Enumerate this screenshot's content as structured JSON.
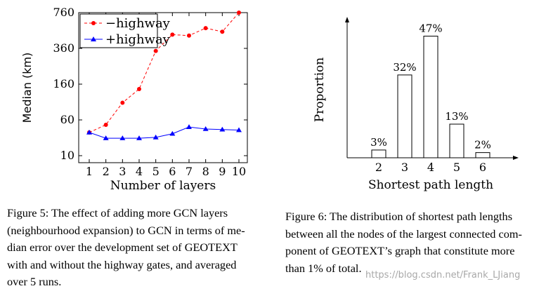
{
  "chart_data": [
    {
      "type": "line",
      "xlabel": "Number of layers",
      "ylabel": "Median (km)",
      "x": [
        1,
        2,
        3,
        4,
        5,
        6,
        7,
        8,
        9,
        10
      ],
      "x_ticks": [
        "1",
        "2",
        "3",
        "4",
        "5",
        "6",
        "7",
        "8",
        "9",
        "10"
      ],
      "y_ticks": [
        10,
        60,
        160,
        360,
        760
      ],
      "y_tick_labels": [
        "10",
        "60",
        "160",
        "360",
        "760"
      ],
      "yscale": "log-like",
      "ylim": [
        10,
        760
      ],
      "legend_position": "top-left",
      "series": [
        {
          "name": "−highway",
          "values": [
            32,
            47,
            96,
            140,
            340,
            480,
            470,
            550,
            510,
            760
          ],
          "color": "#ff0000",
          "style": "dashed",
          "marker": "circle"
        },
        {
          "name": "+highway",
          "values": [
            32,
            24,
            24,
            24,
            25,
            30,
            42,
            38,
            37,
            36
          ],
          "color": "#0000ff",
          "style": "solid",
          "marker": "triangle"
        }
      ]
    },
    {
      "type": "bar",
      "xlabel": "Shortest path length",
      "ylabel": "Proportion",
      "categories": [
        "2",
        "3",
        "4",
        "5",
        "6"
      ],
      "values": [
        3,
        32,
        47,
        13,
        2
      ],
      "value_labels": [
        "3%",
        "32%",
        "47%",
        "13%",
        "2%"
      ],
      "ylim": [
        0,
        55
      ]
    }
  ],
  "captions": {
    "left_lines": [
      "Figure 5: The effect of adding more GCN layers",
      "(neighbourhood expansion) to GCN in terms of me-",
      "dian error over the development set of GEOTEXT",
      "with and without the highway gates, and averaged",
      "over 5 runs."
    ],
    "right_lines": [
      "Figure 6: The distribution of shortest path lengths",
      "between all the nodes of the largest connected com-",
      "ponent of GEOTEXT’s graph that constitute more",
      "than 1% of total."
    ]
  },
  "watermark": "https://blog.csdn.net/Frank_LJiang"
}
